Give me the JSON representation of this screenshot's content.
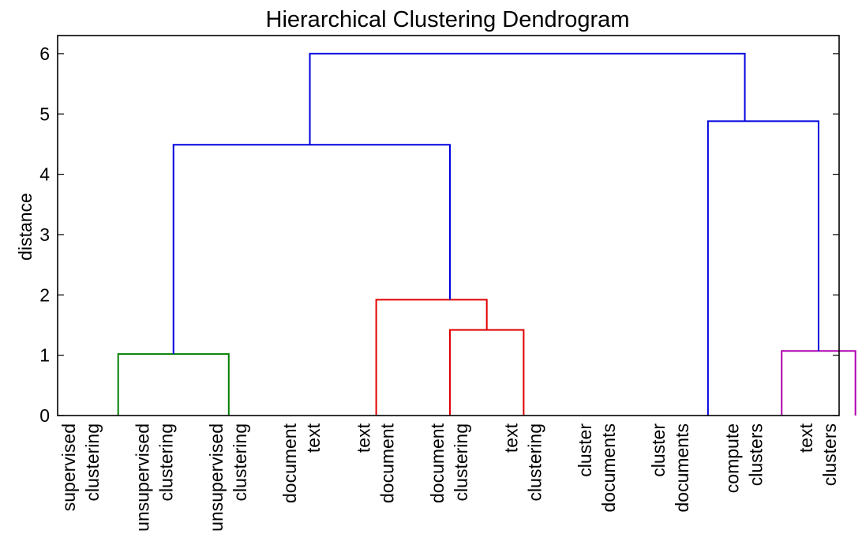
{
  "chart_data": {
    "type": "dendrogram",
    "title": "Hierarchical Clustering Dendrogram",
    "xlabel": "",
    "ylabel": "distance",
    "ylim": [
      0,
      6.3
    ],
    "yticks": [
      0,
      1,
      2,
      3,
      4,
      5,
      6
    ],
    "grid": false,
    "leaves": [
      [
        "supervised",
        "clustering"
      ],
      [
        "unsupervised",
        "clustering"
      ],
      [
        "unsupervised",
        "clustering"
      ],
      [
        "document",
        "text"
      ],
      [
        "text",
        "document"
      ],
      [
        "document",
        "clustering"
      ],
      [
        "text",
        "clustering"
      ],
      [
        "cluster",
        "documents"
      ],
      [
        "cluster",
        "documents"
      ],
      [
        "compute",
        "clusters"
      ],
      [
        "text",
        "clusters"
      ]
    ],
    "links": [
      {
        "x": [
          0.5,
          2.0
        ],
        "base": [
          0,
          0
        ],
        "height": 1.02,
        "color": "#008000"
      },
      {
        "x": [
          5.0,
          6.0
        ],
        "base": [
          0,
          0
        ],
        "height": 1.42,
        "color": "#e00000"
      },
      {
        "x": [
          4.0,
          5.5
        ],
        "base": [
          0,
          1.42
        ],
        "height": 1.92,
        "color": "#e00000"
      },
      {
        "x": [
          9.5,
          10.5
        ],
        "base": [
          0,
          0
        ],
        "height": 1.07,
        "color": "#b000b0"
      },
      {
        "x": [
          1.25,
          5.0
        ],
        "base": [
          1.02,
          1.92
        ],
        "height": 4.49,
        "color": "#0000dd"
      },
      {
        "x": [
          8.5,
          10.0
        ],
        "base": [
          0,
          1.07
        ],
        "height": 4.88,
        "color": "#0000dd"
      },
      {
        "x": [
          3.1,
          9.0
        ],
        "base": [
          4.49,
          4.88
        ],
        "height": 6.0,
        "color": "#0000dd"
      }
    ]
  }
}
